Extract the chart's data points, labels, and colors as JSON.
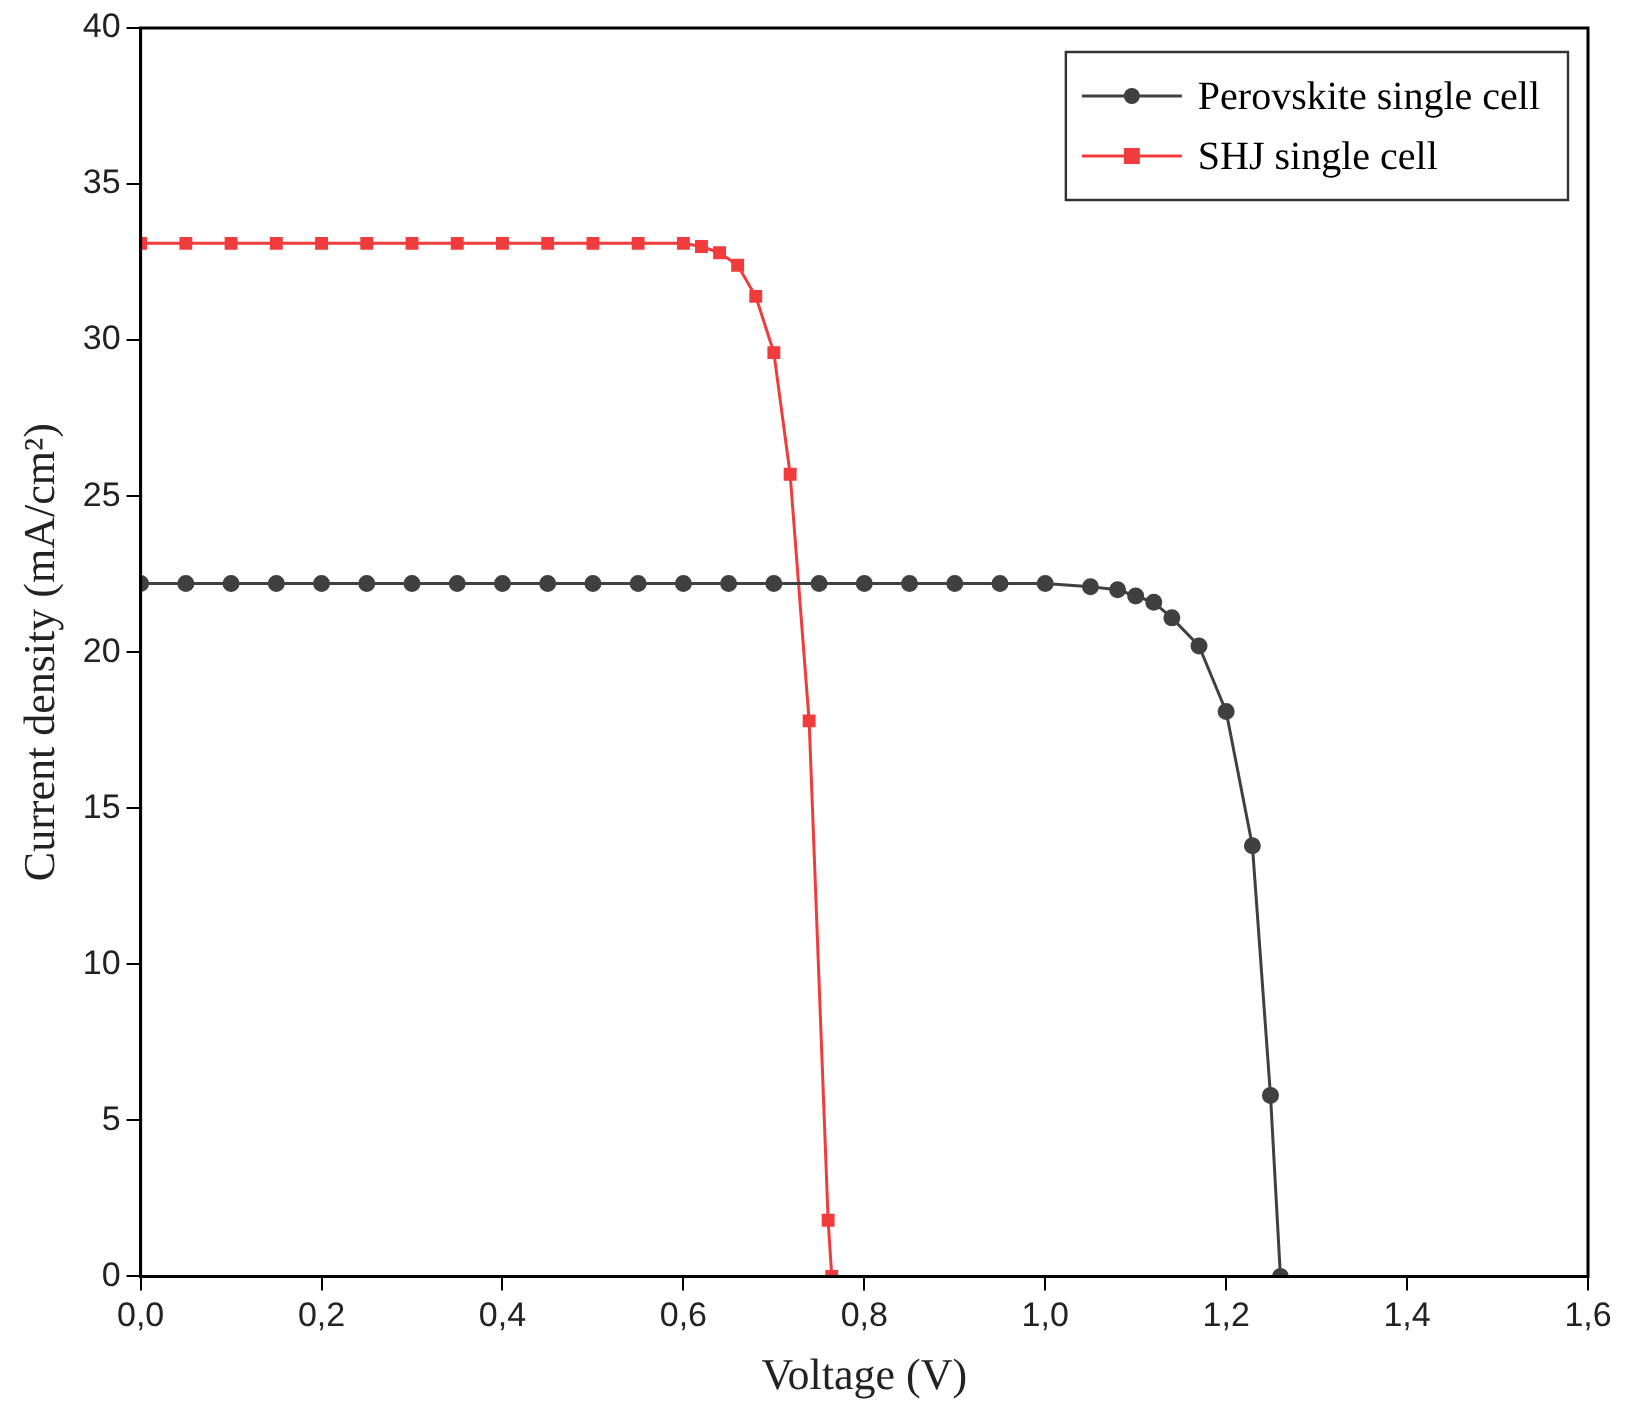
{
  "chart_data": {
    "type": "line",
    "xlabel": "Voltage (V)",
    "ylabel": "Current density (mA/cm²)",
    "xlim": [
      0,
      1.6
    ],
    "ylim": [
      0,
      40
    ],
    "xticks": [
      {
        "value": 0,
        "label": "0,0"
      },
      {
        "value": 0.2,
        "label": "0,2"
      },
      {
        "value": 0.4,
        "label": "0,4"
      },
      {
        "value": 0.6,
        "label": "0,6"
      },
      {
        "value": 0.8,
        "label": "0,8"
      },
      {
        "value": 1,
        "label": "1,0"
      },
      {
        "value": 1.2,
        "label": "1,2"
      },
      {
        "value": 1.4,
        "label": "1,4"
      },
      {
        "value": 1.6,
        "label": "1,6"
      }
    ],
    "yticks": [
      0,
      5,
      10,
      15,
      20,
      25,
      30,
      35,
      40
    ],
    "legend": "top right",
    "grid": false,
    "series": [
      {
        "name": "Perovskite single cell",
        "color": "#404040",
        "marker": "circle",
        "x": [
          0,
          0.05,
          0.1,
          0.15,
          0.2,
          0.25,
          0.3,
          0.35,
          0.4,
          0.45,
          0.5,
          0.55,
          0.6,
          0.65,
          0.7,
          0.75,
          0.8,
          0.85,
          0.9,
          0.95,
          1.0,
          1.05,
          1.08,
          1.1,
          1.12,
          1.14,
          1.17,
          1.2,
          1.229,
          1.249,
          1.26
        ],
        "values": [
          22.2,
          22.2,
          22.2,
          22.2,
          22.2,
          22.2,
          22.2,
          22.2,
          22.2,
          22.2,
          22.2,
          22.2,
          22.2,
          22.2,
          22.2,
          22.2,
          22.2,
          22.2,
          22.2,
          22.2,
          22.2,
          22.1,
          22.0,
          21.8,
          21.6,
          21.1,
          20.2,
          18.1,
          13.8,
          5.8,
          0
        ]
      },
      {
        "name": "SHJ single cell",
        "color": "#f03c3c",
        "marker": "square",
        "x": [
          0,
          0.05,
          0.1,
          0.15,
          0.2,
          0.25,
          0.3,
          0.35,
          0.4,
          0.45,
          0.5,
          0.55,
          0.6,
          0.62,
          0.64,
          0.66,
          0.68,
          0.7,
          0.718,
          0.739,
          0.76,
          0.764
        ],
        "values": [
          33.1,
          33.1,
          33.1,
          33.1,
          33.1,
          33.1,
          33.1,
          33.1,
          33.1,
          33.1,
          33.1,
          33.1,
          33.1,
          33.0,
          32.8,
          32.4,
          31.4,
          29.6,
          25.7,
          17.8,
          1.8,
          0
        ]
      }
    ]
  }
}
